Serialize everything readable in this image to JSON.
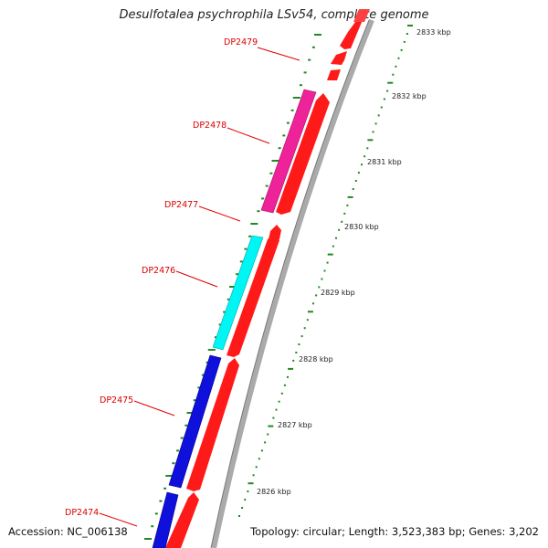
{
  "title": "Desulfotalea psychrophila LSv54, complete genome",
  "accession": "Accession: NC_006138",
  "summary": "Topology: circular; Length: 3,523,383 bp; Genes: 3,202",
  "colors": {
    "gene_label": "#dd0000",
    "cds": "#ff0000",
    "ruler_dots": "#228822",
    "backbone": "#9a9a9a"
  },
  "genes": [
    {
      "label": "DP2479",
      "color": "#ff2020"
    },
    {
      "label": "DP2478",
      "color": "#ee2299"
    },
    {
      "label": "DP2477",
      "color": "#ff2020"
    },
    {
      "label": "DP2476",
      "color": "#00f5f5"
    },
    {
      "label": "DP2475",
      "color": "#1010dd"
    },
    {
      "label": "DP2474",
      "color": "#1010dd"
    }
  ],
  "ruler_ticks": [
    "2833 kbp",
    "2832 kbp",
    "2831 kbp",
    "2830 kbp",
    "2829 kbp",
    "2828 kbp",
    "2827 kbp",
    "2826 kbp"
  ]
}
